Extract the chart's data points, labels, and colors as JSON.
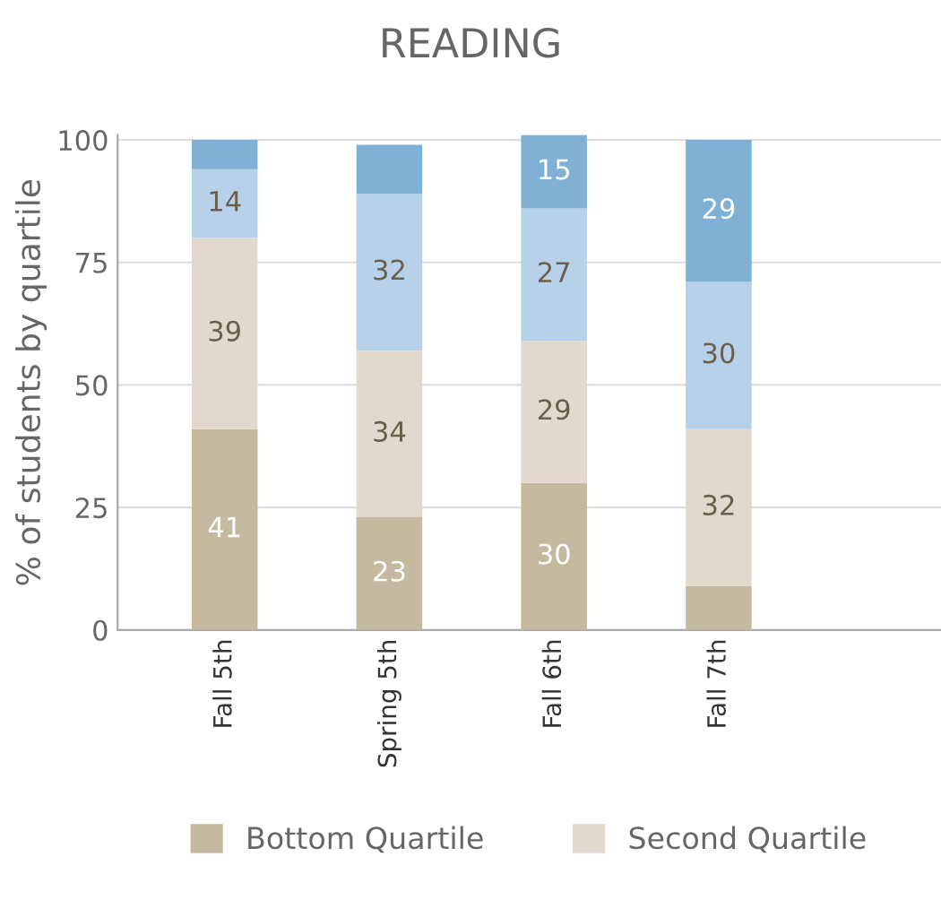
{
  "chart_data": {
    "type": "bar",
    "title": "READING",
    "ylabel": "% of students by quartile",
    "categories": [
      "Fall 5th",
      "Spring 5th",
      "Fall 6th",
      "Fall 7th"
    ],
    "stacked": true,
    "ylim": [
      0,
      101
    ],
    "yticks": [
      0,
      25,
      50,
      75,
      100
    ],
    "grid": "y",
    "legend": "bottom",
    "series": [
      {
        "name": "Bottom Quartile",
        "color": "#c5b9a0",
        "values": [
          41,
          23,
          30,
          9
        ],
        "value_labels": [
          "41",
          "23",
          "30",
          null
        ]
      },
      {
        "name": "Second Quartile",
        "color": "#e2d8cd",
        "values": [
          39,
          34,
          29,
          32
        ],
        "value_labels": [
          "39",
          "34",
          "29",
          "32"
        ]
      },
      {
        "color": "#b8d1ea",
        "values": [
          14,
          32,
          27,
          30
        ],
        "value_labels": [
          "14",
          "32",
          "27",
          "30"
        ]
      },
      {
        "color": "#80b1d5",
        "values": [
          6,
          10,
          15,
          29
        ],
        "value_labels": [
          null,
          null,
          "15",
          "29"
        ]
      }
    ]
  }
}
